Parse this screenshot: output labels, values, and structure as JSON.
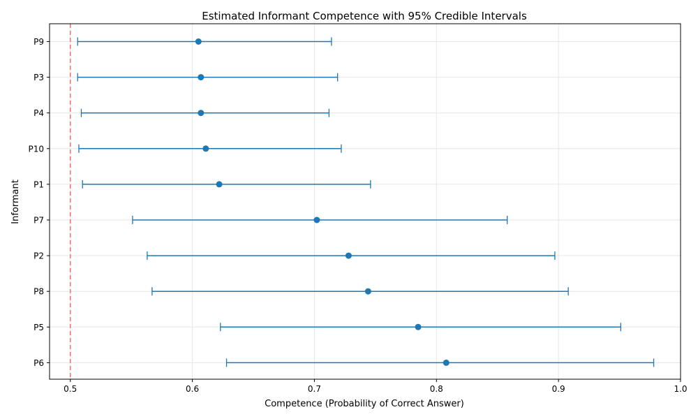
{
  "chart_data": {
    "type": "errorbar",
    "title": "Estimated Informant Competence with 95% Credible Intervals",
    "xlabel": "Competence (Probability of Correct Answer)",
    "ylabel": "Informant",
    "xlim": [
      0.483,
      1.0
    ],
    "xticks": [
      "0.5",
      "0.6",
      "0.7",
      "0.8",
      "0.9",
      "1.0"
    ],
    "grid": true,
    "reference_line": {
      "x": 0.5,
      "style": "dashed",
      "color": "#f07070"
    },
    "series_color": "#1f77b4",
    "informants": [
      {
        "label": "P9",
        "estimate": 0.605,
        "lower": 0.506,
        "upper": 0.714
      },
      {
        "label": "P3",
        "estimate": 0.607,
        "lower": 0.506,
        "upper": 0.719
      },
      {
        "label": "P4",
        "estimate": 0.607,
        "lower": 0.509,
        "upper": 0.712
      },
      {
        "label": "P10",
        "estimate": 0.611,
        "lower": 0.507,
        "upper": 0.722
      },
      {
        "label": "P1",
        "estimate": 0.622,
        "lower": 0.51,
        "upper": 0.746
      },
      {
        "label": "P7",
        "estimate": 0.702,
        "lower": 0.551,
        "upper": 0.858
      },
      {
        "label": "P2",
        "estimate": 0.728,
        "lower": 0.563,
        "upper": 0.897
      },
      {
        "label": "P8",
        "estimate": 0.744,
        "lower": 0.567,
        "upper": 0.908
      },
      {
        "label": "P5",
        "estimate": 0.785,
        "lower": 0.623,
        "upper": 0.951
      },
      {
        "label": "P6",
        "estimate": 0.808,
        "lower": 0.628,
        "upper": 0.978
      }
    ]
  }
}
